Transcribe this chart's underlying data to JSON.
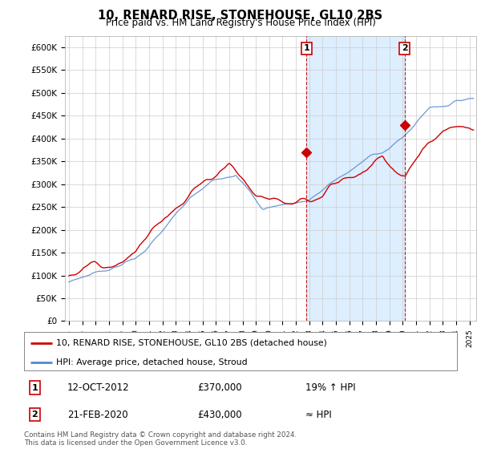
{
  "title": "10, RENARD RISE, STONEHOUSE, GL10 2BS",
  "subtitle": "Price paid vs. HM Land Registry's House Price Index (HPI)",
  "ylabel_ticks": [
    "£0",
    "£50K",
    "£100K",
    "£150K",
    "£200K",
    "£250K",
    "£300K",
    "£350K",
    "£400K",
    "£450K",
    "£500K",
    "£550K",
    "£600K"
  ],
  "ytick_values": [
    0,
    50000,
    100000,
    150000,
    200000,
    250000,
    300000,
    350000,
    400000,
    450000,
    500000,
    550000,
    600000
  ],
  "ylim": [
    0,
    625000
  ],
  "xlim_start": 1994.7,
  "xlim_end": 2025.5,
  "marker1_x": 2012.79,
  "marker1_y": 370000,
  "marker1_label": "1",
  "marker1_date": "12-OCT-2012",
  "marker1_price": "£370,000",
  "marker1_note": "19% ↑ HPI",
  "marker2_x": 2020.13,
  "marker2_y": 430000,
  "marker2_label": "2",
  "marker2_date": "21-FEB-2020",
  "marker2_price": "£430,000",
  "marker2_note": "≈ HPI",
  "line1_color": "#cc0000",
  "line2_color": "#5588cc",
  "shade_color": "#ddeeff",
  "legend_line1": "10, RENARD RISE, STONEHOUSE, GL10 2BS (detached house)",
  "legend_line2": "HPI: Average price, detached house, Stroud",
  "footer": "Contains HM Land Registry data © Crown copyright and database right 2024.\nThis data is licensed under the Open Government Licence v3.0.",
  "bg_color": "#ffffff",
  "grid_color": "#cccccc"
}
